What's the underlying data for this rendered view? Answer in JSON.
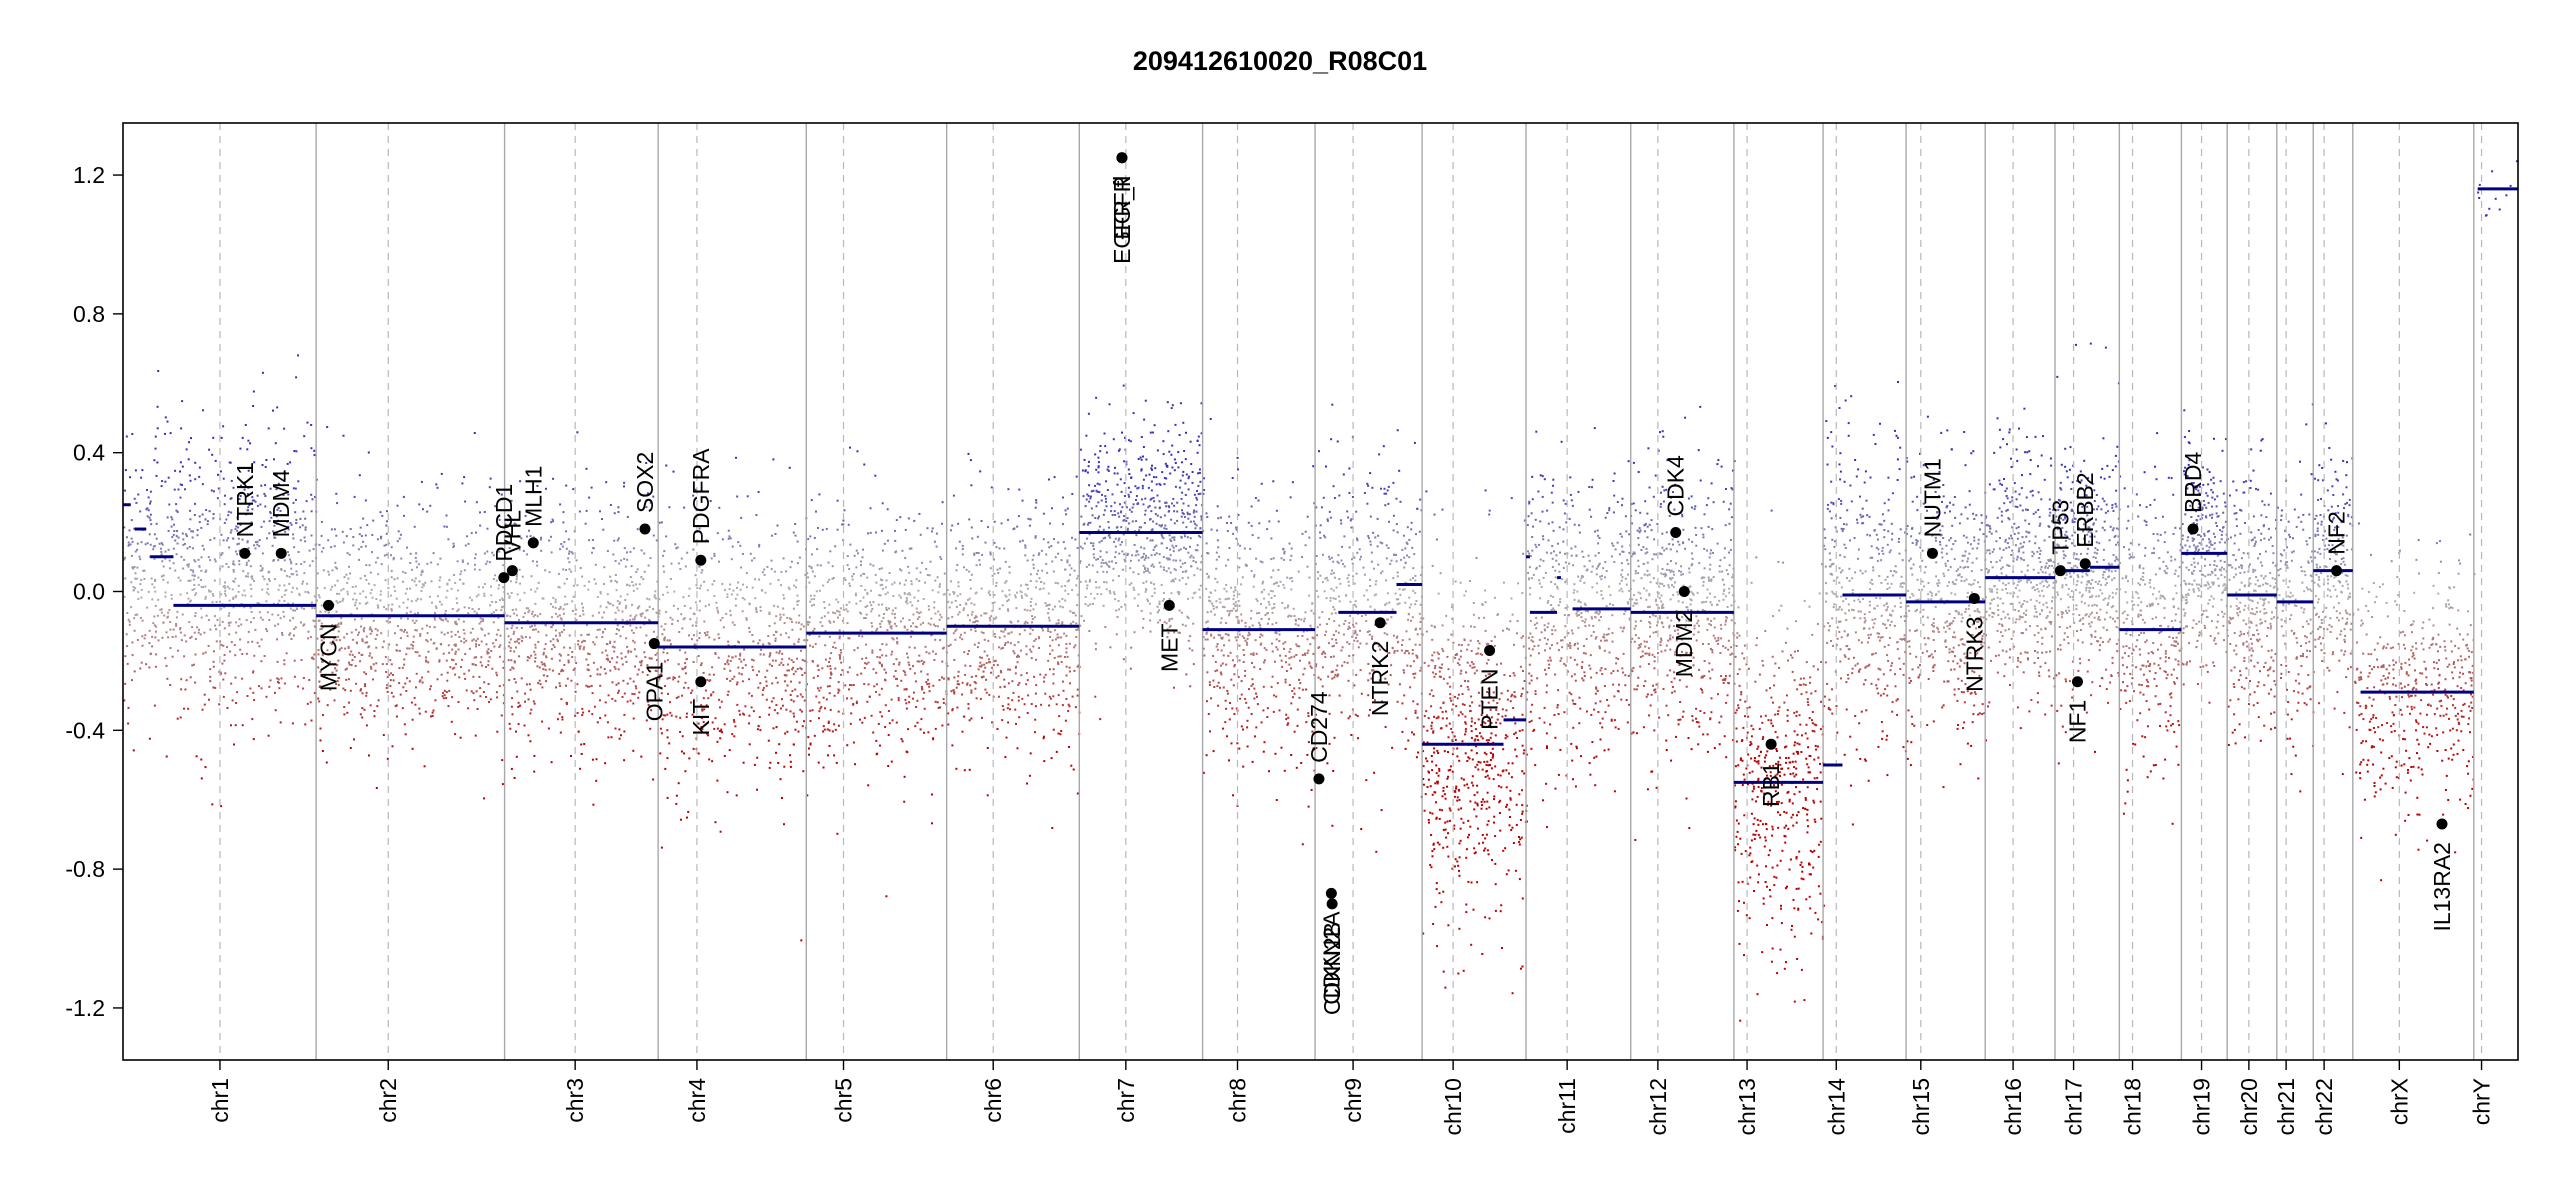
{
  "chart_data": {
    "type": "scatter",
    "title": "209412610020_R08C01",
    "xlabel": "",
    "ylabel": "",
    "ylim": [
      -1.35,
      1.35
    ],
    "y_ticks": [
      -1.2,
      -0.8,
      -0.4,
      0.0,
      0.4,
      0.8,
      1.2
    ],
    "y_tick_labels": [
      "-1.2",
      "-0.8",
      "-0.4",
      "0.0",
      "0.4",
      "0.8",
      "1.2"
    ],
    "grid": false,
    "colors": {
      "gain": "#3b3bb3",
      "loss": "#b00000",
      "neutral": "#9a9a9a",
      "segment": "#000080",
      "gene": "#000000"
    },
    "chromosomes": [
      {
        "name": "chr1",
        "length_mb": 249,
        "centromere_mb": 125
      },
      {
        "name": "chr2",
        "length_mb": 243,
        "centromere_mb": 93
      },
      {
        "name": "chr3",
        "length_mb": 198,
        "centromere_mb": 91
      },
      {
        "name": "chr4",
        "length_mb": 191,
        "centromere_mb": 50
      },
      {
        "name": "chr5",
        "length_mb": 181,
        "centromere_mb": 48
      },
      {
        "name": "chr6",
        "length_mb": 171,
        "centromere_mb": 60
      },
      {
        "name": "chr7",
        "length_mb": 159,
        "centromere_mb": 60
      },
      {
        "name": "chr8",
        "length_mb": 145,
        "centromere_mb": 45
      },
      {
        "name": "chr9",
        "length_mb": 138,
        "centromere_mb": 49
      },
      {
        "name": "chr10",
        "length_mb": 134,
        "centromere_mb": 40
      },
      {
        "name": "chr11",
        "length_mb": 135,
        "centromere_mb": 53
      },
      {
        "name": "chr12",
        "length_mb": 133,
        "centromere_mb": 35
      },
      {
        "name": "chr13",
        "length_mb": 115,
        "centromere_mb": 17
      },
      {
        "name": "chr14",
        "length_mb": 107,
        "centromere_mb": 17
      },
      {
        "name": "chr15",
        "length_mb": 102,
        "centromere_mb": 19
      },
      {
        "name": "chr16",
        "length_mb": 90,
        "centromere_mb": 36
      },
      {
        "name": "chr17",
        "length_mb": 83,
        "centromere_mb": 24
      },
      {
        "name": "chr18",
        "length_mb": 80,
        "centromere_mb": 17
      },
      {
        "name": "chr19",
        "length_mb": 59,
        "centromere_mb": 26
      },
      {
        "name": "chr20",
        "length_mb": 64,
        "centromere_mb": 28
      },
      {
        "name": "chr21",
        "length_mb": 47,
        "centromere_mb": 12
      },
      {
        "name": "chr22",
        "length_mb": 51,
        "centromere_mb": 14
      },
      {
        "name": "chrX",
        "length_mb": 156,
        "centromere_mb": 60
      },
      {
        "name": "chrY",
        "length_mb": 57,
        "centromere_mb": 10
      }
    ],
    "segments": [
      {
        "chr": "chr1",
        "start_mb": 0,
        "end_mb": 10,
        "value": 0.25
      },
      {
        "chr": "chr1",
        "start_mb": 15,
        "end_mb": 30,
        "value": 0.18
      },
      {
        "chr": "chr1",
        "start_mb": 35,
        "end_mb": 65,
        "value": 0.1
      },
      {
        "chr": "chr1",
        "start_mb": 65,
        "end_mb": 249,
        "value": -0.04
      },
      {
        "chr": "chr2",
        "start_mb": 0,
        "end_mb": 243,
        "value": -0.07
      },
      {
        "chr": "chr3",
        "start_mb": 0,
        "end_mb": 198,
        "value": -0.09
      },
      {
        "chr": "chr4",
        "start_mb": 0,
        "end_mb": 191,
        "value": -0.16
      },
      {
        "chr": "chr5",
        "start_mb": 0,
        "end_mb": 181,
        "value": -0.12
      },
      {
        "chr": "chr6",
        "start_mb": 0,
        "end_mb": 171,
        "value": -0.1
      },
      {
        "chr": "chr7",
        "start_mb": 0,
        "end_mb": 159,
        "value": 0.17
      },
      {
        "chr": "chr8",
        "start_mb": 0,
        "end_mb": 145,
        "value": -0.11
      },
      {
        "chr": "chr9",
        "start_mb": 30,
        "end_mb": 105,
        "value": -0.06
      },
      {
        "chr": "chr9",
        "start_mb": 105,
        "end_mb": 138,
        "value": 0.02
      },
      {
        "chr": "chr10",
        "start_mb": 0,
        "end_mb": 105,
        "value": -0.44
      },
      {
        "chr": "chr10",
        "start_mb": 105,
        "end_mb": 134,
        "value": -0.37
      },
      {
        "chr": "chr11",
        "start_mb": 0,
        "end_mb": 5,
        "value": 0.1
      },
      {
        "chr": "chr11",
        "start_mb": 5,
        "end_mb": 40,
        "value": -0.06
      },
      {
        "chr": "chr11",
        "start_mb": 40,
        "end_mb": 45,
        "value": 0.04
      },
      {
        "chr": "chr11",
        "start_mb": 60,
        "end_mb": 135,
        "value": -0.05
      },
      {
        "chr": "chr12",
        "start_mb": 0,
        "end_mb": 133,
        "value": -0.06
      },
      {
        "chr": "chr13",
        "start_mb": 0,
        "end_mb": 115,
        "value": -0.55
      },
      {
        "chr": "chr14",
        "start_mb": 0,
        "end_mb": 25,
        "value": -0.5
      },
      {
        "chr": "chr14",
        "start_mb": 25,
        "end_mb": 107,
        "value": -0.01
      },
      {
        "chr": "chr15",
        "start_mb": 0,
        "end_mb": 102,
        "value": -0.03
      },
      {
        "chr": "chr16",
        "start_mb": 0,
        "end_mb": 90,
        "value": 0.04
      },
      {
        "chr": "chr17",
        "start_mb": 0,
        "end_mb": 45,
        "value": 0.06
      },
      {
        "chr": "chr17",
        "start_mb": 45,
        "end_mb": 83,
        "value": 0.07
      },
      {
        "chr": "chr18",
        "start_mb": 0,
        "end_mb": 80,
        "value": -0.11
      },
      {
        "chr": "chr19",
        "start_mb": 0,
        "end_mb": 59,
        "value": 0.11
      },
      {
        "chr": "chr20",
        "start_mb": 0,
        "end_mb": 64,
        "value": -0.01
      },
      {
        "chr": "chr21",
        "start_mb": 0,
        "end_mb": 47,
        "value": -0.03
      },
      {
        "chr": "chr22",
        "start_mb": 0,
        "end_mb": 51,
        "value": 0.06
      },
      {
        "chr": "chrX",
        "start_mb": 10,
        "end_mb": 156,
        "value": -0.29
      },
      {
        "chr": "chrY",
        "start_mb": 5,
        "end_mb": 57,
        "value": 1.16
      }
    ],
    "genes": [
      {
        "name": "NTRK1",
        "chr": "chr1",
        "pos_mb": 157,
        "value": 0.11
      },
      {
        "name": "MDM4",
        "chr": "chr1",
        "pos_mb": 204,
        "value": 0.11
      },
      {
        "name": "MYCN",
        "chr": "chr2",
        "pos_mb": 16,
        "value": -0.04
      },
      {
        "name": "PDCD1",
        "chr": "chr2",
        "pos_mb": 242,
        "value": 0.04
      },
      {
        "name": "VHL",
        "chr": "chr3",
        "pos_mb": 10,
        "value": 0.06
      },
      {
        "name": "MLH1",
        "chr": "chr3",
        "pos_mb": 37,
        "value": 0.14
      },
      {
        "name": "SOX2",
        "chr": "chr3",
        "pos_mb": 181,
        "value": 0.18
      },
      {
        "name": "OPA1",
        "chr": "chr3",
        "pos_mb": 193,
        "value": -0.15
      },
      {
        "name": "PDGFRA",
        "chr": "chr4",
        "pos_mb": 55,
        "value": 0.09
      },
      {
        "name": "KIT",
        "chr": "chr4",
        "pos_mb": 55,
        "value": -0.26
      },
      {
        "name": "EGFR",
        "chr": "chr7",
        "pos_mb": 55,
        "value": 1.25
      },
      {
        "name": "EGFR_fl",
        "chr": "chr7",
        "pos_mb": 55,
        "value": 1.25
      },
      {
        "name": "MET",
        "chr": "chr7",
        "pos_mb": 116,
        "value": -0.04
      },
      {
        "name": "CD274",
        "chr": "chr9",
        "pos_mb": 5,
        "value": -0.54
      },
      {
        "name": "CDKN2A",
        "chr": "chr9",
        "pos_mb": 21,
        "value": -0.87
      },
      {
        "name": "CDKN2B",
        "chr": "chr9",
        "pos_mb": 22,
        "value": -0.9
      },
      {
        "name": "NTRK2",
        "chr": "chr9",
        "pos_mb": 84,
        "value": -0.09
      },
      {
        "name": "PTEN",
        "chr": "chr10",
        "pos_mb": 87,
        "value": -0.17
      },
      {
        "name": "CDK4",
        "chr": "chr12",
        "pos_mb": 58,
        "value": 0.17
      },
      {
        "name": "MDM2",
        "chr": "chr12",
        "pos_mb": 69,
        "value": 0.0
      },
      {
        "name": "RB1",
        "chr": "chr13",
        "pos_mb": 48,
        "value": -0.44
      },
      {
        "name": "NUTM1",
        "chr": "chr15",
        "pos_mb": 34,
        "value": 0.11
      },
      {
        "name": "NTRK3",
        "chr": "chr15",
        "pos_mb": 88,
        "value": -0.02
      },
      {
        "name": "TP53",
        "chr": "chr17",
        "pos_mb": 7,
        "value": 0.06
      },
      {
        "name": "NF1",
        "chr": "chr17",
        "pos_mb": 29,
        "value": -0.26
      },
      {
        "name": "ERBB2",
        "chr": "chr17",
        "pos_mb": 39,
        "value": 0.08
      },
      {
        "name": "BRD4",
        "chr": "chr19",
        "pos_mb": 15,
        "value": 0.18
      },
      {
        "name": "NF2",
        "chr": "chr22",
        "pos_mb": 30,
        "value": 0.06
      },
      {
        "name": "IL13RA2",
        "chr": "chrX",
        "pos_mb": 115,
        "value": -0.67
      }
    ],
    "probe_clouds": [
      {
        "chr": "chr1",
        "mean": 0.05,
        "sd": 0.2,
        "count": 900
      },
      {
        "chr": "chr2",
        "mean": -0.08,
        "sd": 0.18,
        "count": 800
      },
      {
        "chr": "chr3",
        "mean": -0.1,
        "sd": 0.18,
        "count": 650
      },
      {
        "chr": "chr4",
        "mean": -0.17,
        "sd": 0.2,
        "count": 600
      },
      {
        "chr": "chr5",
        "mean": -0.13,
        "sd": 0.18,
        "count": 600
      },
      {
        "chr": "chr6",
        "mean": -0.11,
        "sd": 0.18,
        "count": 600
      },
      {
        "chr": "chr7",
        "mean": 0.17,
        "sd": 0.16,
        "count": 650
      },
      {
        "chr": "chr8",
        "mean": -0.12,
        "sd": 0.2,
        "count": 500
      },
      {
        "chr": "chr9",
        "mean": -0.05,
        "sd": 0.2,
        "count": 450
      },
      {
        "chr": "chr10",
        "mean": -0.43,
        "sd": 0.25,
        "count": 600
      },
      {
        "chr": "chr11",
        "mean": -0.06,
        "sd": 0.2,
        "count": 500
      },
      {
        "chr": "chr12",
        "mean": -0.06,
        "sd": 0.2,
        "count": 550
      },
      {
        "chr": "chr13",
        "mean": -0.55,
        "sd": 0.25,
        "count": 450
      },
      {
        "chr": "chr14",
        "mean": -0.03,
        "sd": 0.22,
        "count": 400
      },
      {
        "chr": "chr15",
        "mean": -0.03,
        "sd": 0.2,
        "count": 400
      },
      {
        "chr": "chr16",
        "mean": 0.04,
        "sd": 0.18,
        "count": 400
      },
      {
        "chr": "chr17",
        "mean": 0.06,
        "sd": 0.18,
        "count": 400
      },
      {
        "chr": "chr18",
        "mean": -0.11,
        "sd": 0.2,
        "count": 300
      },
      {
        "chr": "chr19",
        "mean": 0.1,
        "sd": 0.16,
        "count": 300
      },
      {
        "chr": "chr20",
        "mean": -0.02,
        "sd": 0.18,
        "count": 280
      },
      {
        "chr": "chr21",
        "mean": -0.03,
        "sd": 0.2,
        "count": 150
      },
      {
        "chr": "chr22",
        "mean": 0.06,
        "sd": 0.18,
        "count": 220
      },
      {
        "chr": "chrX",
        "mean": -0.29,
        "sd": 0.18,
        "count": 450
      },
      {
        "chr": "chrY",
        "mean": 1.16,
        "sd": 0.05,
        "count": 12
      }
    ]
  }
}
